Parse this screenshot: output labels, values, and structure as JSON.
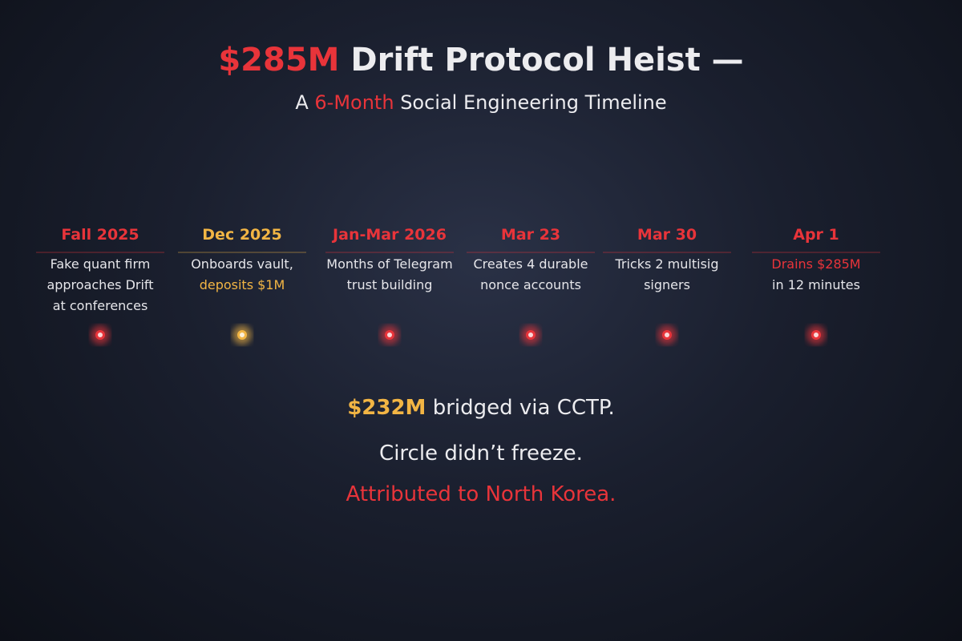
{
  "title": {
    "highlight": "$285M",
    "text": "Drift Protocol Heist —"
  },
  "subtitle": {
    "before": "A",
    "highlight": "6-Month",
    "after": "Social Engineering Timeline"
  },
  "events": [
    {
      "date": "Fall 2025",
      "color": "#e8343a",
      "lines": [
        {
          "text": "Fake quant firm",
          "color": "#e6e6ea"
        },
        {
          "text": "approaches Drift",
          "color": "#e6e6ea"
        },
        {
          "text": "at conferences",
          "color": "#e6e6ea"
        }
      ]
    },
    {
      "date": "Dec 2025",
      "color": "#f2b544",
      "lines": [
        {
          "text": "Onboards vault,",
          "color": "#e6e6ea"
        },
        {
          "text": "deposits $1M",
          "color": "#f2b544"
        }
      ]
    },
    {
      "date": "Jan-Mar 2026",
      "color": "#e8343a",
      "lines": [
        {
          "text": "Months of Telegram",
          "color": "#e6e6ea"
        },
        {
          "text": "trust building",
          "color": "#e6e6ea"
        }
      ]
    },
    {
      "date": "Mar 23",
      "color": "#e8343a",
      "lines": [
        {
          "text": "Creates 4 durable",
          "color": "#e6e6ea"
        },
        {
          "text": "nonce accounts",
          "color": "#e6e6ea"
        }
      ]
    },
    {
      "date": "Mar 30",
      "color": "#e8343a",
      "lines": [
        {
          "text": "Tricks 2 multisig",
          "color": "#e6e6ea"
        },
        {
          "text": "signers",
          "color": "#e6e6ea"
        }
      ]
    },
    {
      "date": "Apr 1",
      "color": "#e8343a",
      "lines": [
        {
          "text": "Drains $285M",
          "color": "#e8343a"
        },
        {
          "text": "in 12 minutes",
          "color": "#e6e6ea"
        }
      ]
    }
  ],
  "summary": [
    {
      "highlight": "$232M",
      "text": "bridged via CCTP."
    },
    {
      "text": "Circle didn’t freeze."
    },
    {
      "text": "Attributed to North Korea."
    }
  ]
}
